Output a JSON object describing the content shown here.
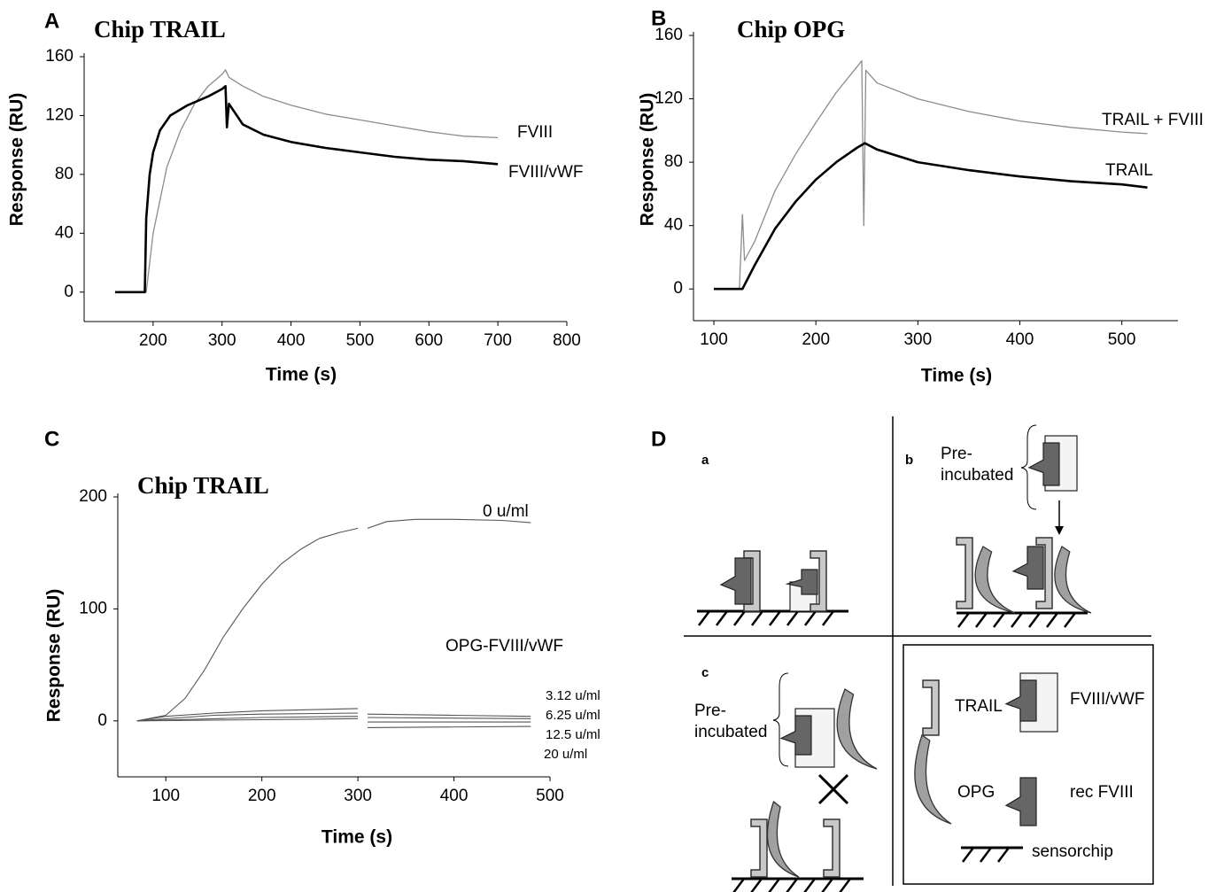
{
  "chart_data": [
    {
      "type": "line",
      "panel": "A",
      "title": "Chip TRAIL",
      "xlabel": "Time (s)",
      "ylabel": "Response (RU)",
      "xlim": [
        100,
        800
      ],
      "ylim": [
        -20,
        160
      ],
      "xticks": [
        200,
        300,
        400,
        500,
        600,
        700,
        800
      ],
      "yticks": [
        0,
        40,
        80,
        120,
        160
      ],
      "series": [
        {
          "name": "FVIII",
          "color": "#8c8c8c",
          "linewidth": 1.3,
          "x": [
            145,
            190,
            200,
            220,
            240,
            260,
            280,
            300,
            305,
            310,
            330,
            360,
            400,
            450,
            500,
            550,
            600,
            650,
            700
          ],
          "values": [
            0,
            0,
            40,
            85,
            110,
            128,
            140,
            148,
            151,
            146,
            140,
            133,
            127,
            121,
            117,
            113,
            109,
            106,
            105
          ]
        },
        {
          "name": "FVIII/vWF",
          "color": "#000000",
          "linewidth": 2.6,
          "x": [
            145,
            188,
            190,
            195,
            200,
            210,
            225,
            250,
            280,
            300,
            305,
            307,
            310,
            330,
            360,
            400,
            450,
            500,
            550,
            600,
            650,
            700
          ],
          "values": [
            0,
            0,
            50,
            80,
            95,
            110,
            120,
            127,
            133,
            138,
            140,
            112,
            128,
            114,
            107,
            102,
            98,
            95,
            92,
            90,
            89,
            87
          ]
        }
      ]
    },
    {
      "type": "line",
      "panel": "B",
      "title": "Chip OPG",
      "xlabel": "Time (s)",
      "ylabel": "Response (RU)",
      "xlim": [
        80,
        555
      ],
      "ylim": [
        -20,
        160
      ],
      "xticks": [
        100,
        200,
        300,
        400,
        500
      ],
      "yticks": [
        0,
        40,
        80,
        120,
        160
      ],
      "series": [
        {
          "name": "TRAIL + FVIII",
          "color": "#8c8c8c",
          "linewidth": 1.3,
          "x": [
            100,
            125,
            128,
            130,
            140,
            160,
            180,
            200,
            220,
            240,
            245,
            247,
            249,
            260,
            300,
            350,
            400,
            450,
            500,
            525
          ],
          "values": [
            0,
            0,
            47,
            18,
            30,
            62,
            85,
            105,
            124,
            140,
            144,
            40,
            138,
            130,
            120,
            112,
            106,
            102,
            99,
            98
          ]
        },
        {
          "name": "TRAIL",
          "color": "#000000",
          "linewidth": 2.6,
          "x": [
            100,
            128,
            140,
            160,
            180,
            200,
            220,
            240,
            248,
            260,
            300,
            350,
            400,
            450,
            500,
            525
          ],
          "values": [
            0,
            0,
            15,
            38,
            55,
            69,
            80,
            89,
            92,
            88,
            80,
            75,
            71,
            68,
            66,
            64
          ]
        }
      ]
    },
    {
      "type": "line",
      "panel": "C",
      "title": "Chip TRAIL",
      "xlabel": "Time (s)",
      "ylabel": "Response (RU)",
      "annotation": "OPG-FVIII/vWF",
      "xlim": [
        50,
        500
      ],
      "ylim": [
        -50,
        200
      ],
      "xticks": [
        100,
        200,
        300,
        400,
        500
      ],
      "yticks": [
        0,
        100,
        200
      ],
      "series": [
        {
          "name": "0 u/ml",
          "color": "#555555",
          "linewidth": 1.1,
          "x": [
            70,
            100,
            120,
            140,
            160,
            180,
            200,
            220,
            240,
            260,
            280,
            300,
            305,
            310,
            330,
            360,
            400,
            450,
            480
          ],
          "values": [
            0,
            5,
            20,
            45,
            75,
            100,
            122,
            140,
            153,
            163,
            168,
            172,
            null,
            172,
            178,
            180,
            180,
            179,
            177
          ]
        },
        {
          "name": "3.12 u/ml",
          "color": "#555555",
          "linewidth": 1.1,
          "x": [
            70,
            100,
            150,
            200,
            250,
            300,
            305,
            310,
            400,
            480
          ],
          "values": [
            0,
            4,
            7,
            9,
            10,
            11,
            null,
            6,
            5,
            4
          ]
        },
        {
          "name": "6.25 u/ml",
          "color": "#555555",
          "linewidth": 1.1,
          "x": [
            70,
            150,
            200,
            300,
            305,
            310,
            480
          ],
          "values": [
            0,
            5,
            6,
            7,
            null,
            3,
            2
          ]
        },
        {
          "name": "12.5 u/ml",
          "color": "#555555",
          "linewidth": 1.1,
          "x": [
            70,
            200,
            300,
            305,
            310,
            480
          ],
          "values": [
            0,
            3,
            4,
            null,
            -1,
            -1
          ]
        },
        {
          "name": "20 u/ml",
          "color": "#555555",
          "linewidth": 1.1,
          "x": [
            70,
            200,
            300,
            305,
            310,
            480
          ],
          "values": [
            0,
            1,
            2,
            null,
            -6,
            -5
          ]
        }
      ]
    }
  ],
  "diagram": {
    "panel": "D",
    "sub_labels": [
      "a",
      "b",
      "c"
    ],
    "preincubated_b": [
      "Pre-",
      "incubated"
    ],
    "preincubated_c": [
      "Pre-",
      "incubated"
    ],
    "legend": [
      "TRAIL",
      "FVIII/vWF",
      "OPG",
      "rec FVIII",
      "sensorchip"
    ]
  }
}
